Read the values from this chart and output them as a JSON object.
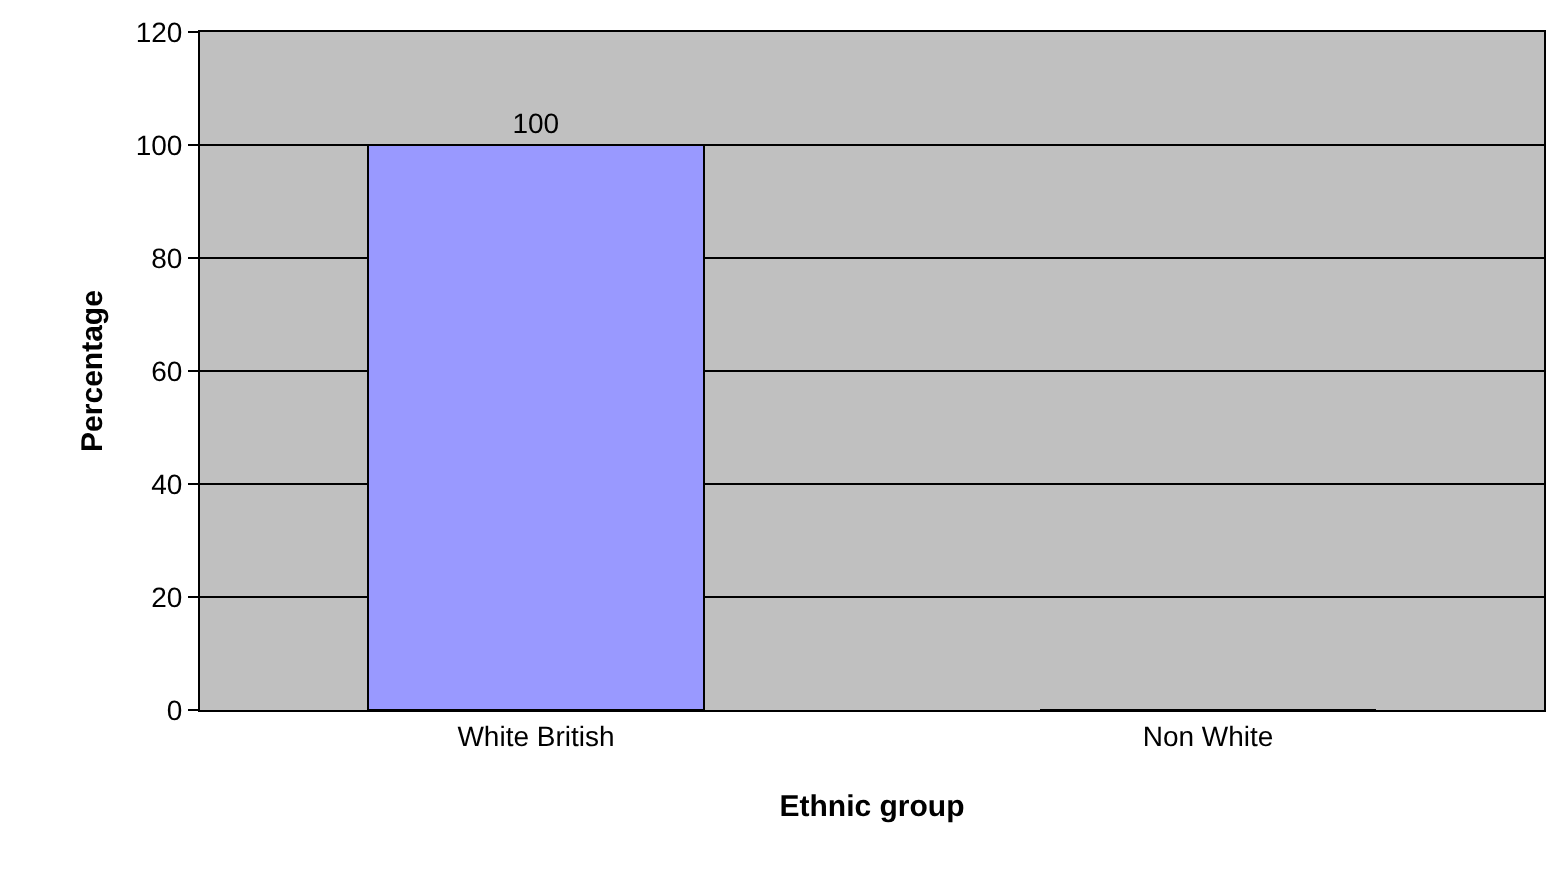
{
  "chart_data": {
    "type": "bar",
    "xlabel": "Ethnic group",
    "ylabel": "Percentage",
    "categories": [
      "White British",
      "Non White"
    ],
    "values": [
      100,
      0
    ],
    "value_labels": [
      "100",
      null
    ],
    "color": "#9999ff",
    "ylim": [
      0,
      120
    ],
    "yticks": [
      0,
      20,
      40,
      60,
      80,
      100,
      120
    ],
    "grid": "y",
    "legend": false
  }
}
